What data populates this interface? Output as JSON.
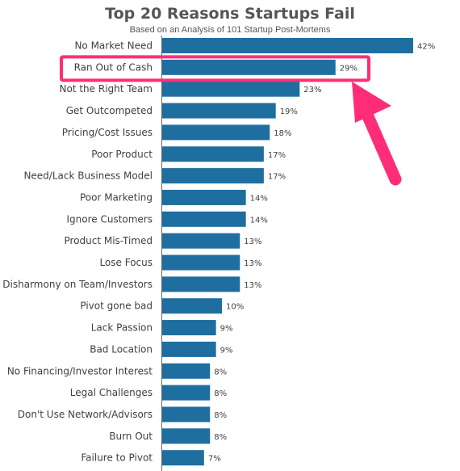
{
  "title": "Top 20 Reasons Startups Fail",
  "subtitle": "Based on an Analysis of 101 Startup Post-Mortems",
  "colors": {
    "bar": "#1f6ea0",
    "highlight": "#ff2d78",
    "axis": "#666666"
  },
  "highlight_index": 1,
  "chart_data": {
    "type": "bar",
    "orientation": "horizontal",
    "title": "Top 20 Reasons Startups Fail",
    "subtitle": "Based on an Analysis of 101 Startup Post-Mortems",
    "xlabel": "",
    "ylabel": "",
    "xlim": [
      0,
      42
    ],
    "grid": false,
    "value_suffix": "%",
    "categories": [
      "No Market Need",
      "Ran Out of Cash",
      "Not the Right Team",
      "Get Outcompeted",
      "Pricing/Cost Issues",
      "Poor Product",
      "Need/Lack Business Model",
      "Poor Marketing",
      "Ignore Customers",
      "Product Mis-Timed",
      "Lose Focus",
      "Disharmony on Team/Investors",
      "Pivot gone bad",
      "Lack Passion",
      "Bad Location",
      "No Financing/Investor Interest",
      "Legal Challenges",
      "Don't Use Network/Advisors",
      "Burn Out",
      "Failure to Pivot"
    ],
    "values": [
      42,
      29,
      23,
      19,
      18,
      17,
      17,
      14,
      14,
      13,
      13,
      13,
      10,
      9,
      9,
      8,
      8,
      8,
      8,
      7
    ]
  }
}
